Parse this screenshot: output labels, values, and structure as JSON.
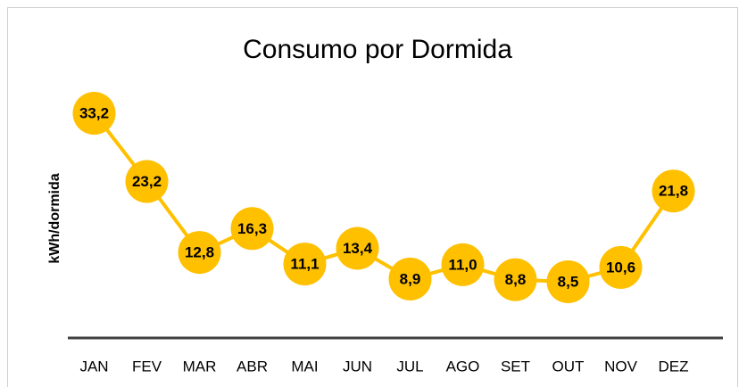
{
  "chart_data": {
    "type": "line",
    "title": "Consumo por Dormida",
    "y_label": "kWh/dormida",
    "categories": [
      "JAN",
      "FEV",
      "MAR",
      "ABR",
      "MAI",
      "JUN",
      "JUL",
      "AGO",
      "SET",
      "OUT",
      "NOV",
      "DEZ"
    ],
    "series": [
      {
        "name": "Consumo por Dormida",
        "color": "#FFC000",
        "values": [
          33.2,
          23.2,
          12.8,
          16.3,
          11.1,
          13.4,
          8.9,
          11.0,
          8.8,
          8.5,
          10.6,
          21.8
        ],
        "value_labels": [
          "33,2",
          "23,2",
          "12,8",
          "16,3",
          "11,1",
          "13,4",
          "8,9",
          "11,0",
          "8,8",
          "8,5",
          "10,6",
          "21,8"
        ]
      }
    ],
    "ylim": [
      0,
      40
    ]
  }
}
